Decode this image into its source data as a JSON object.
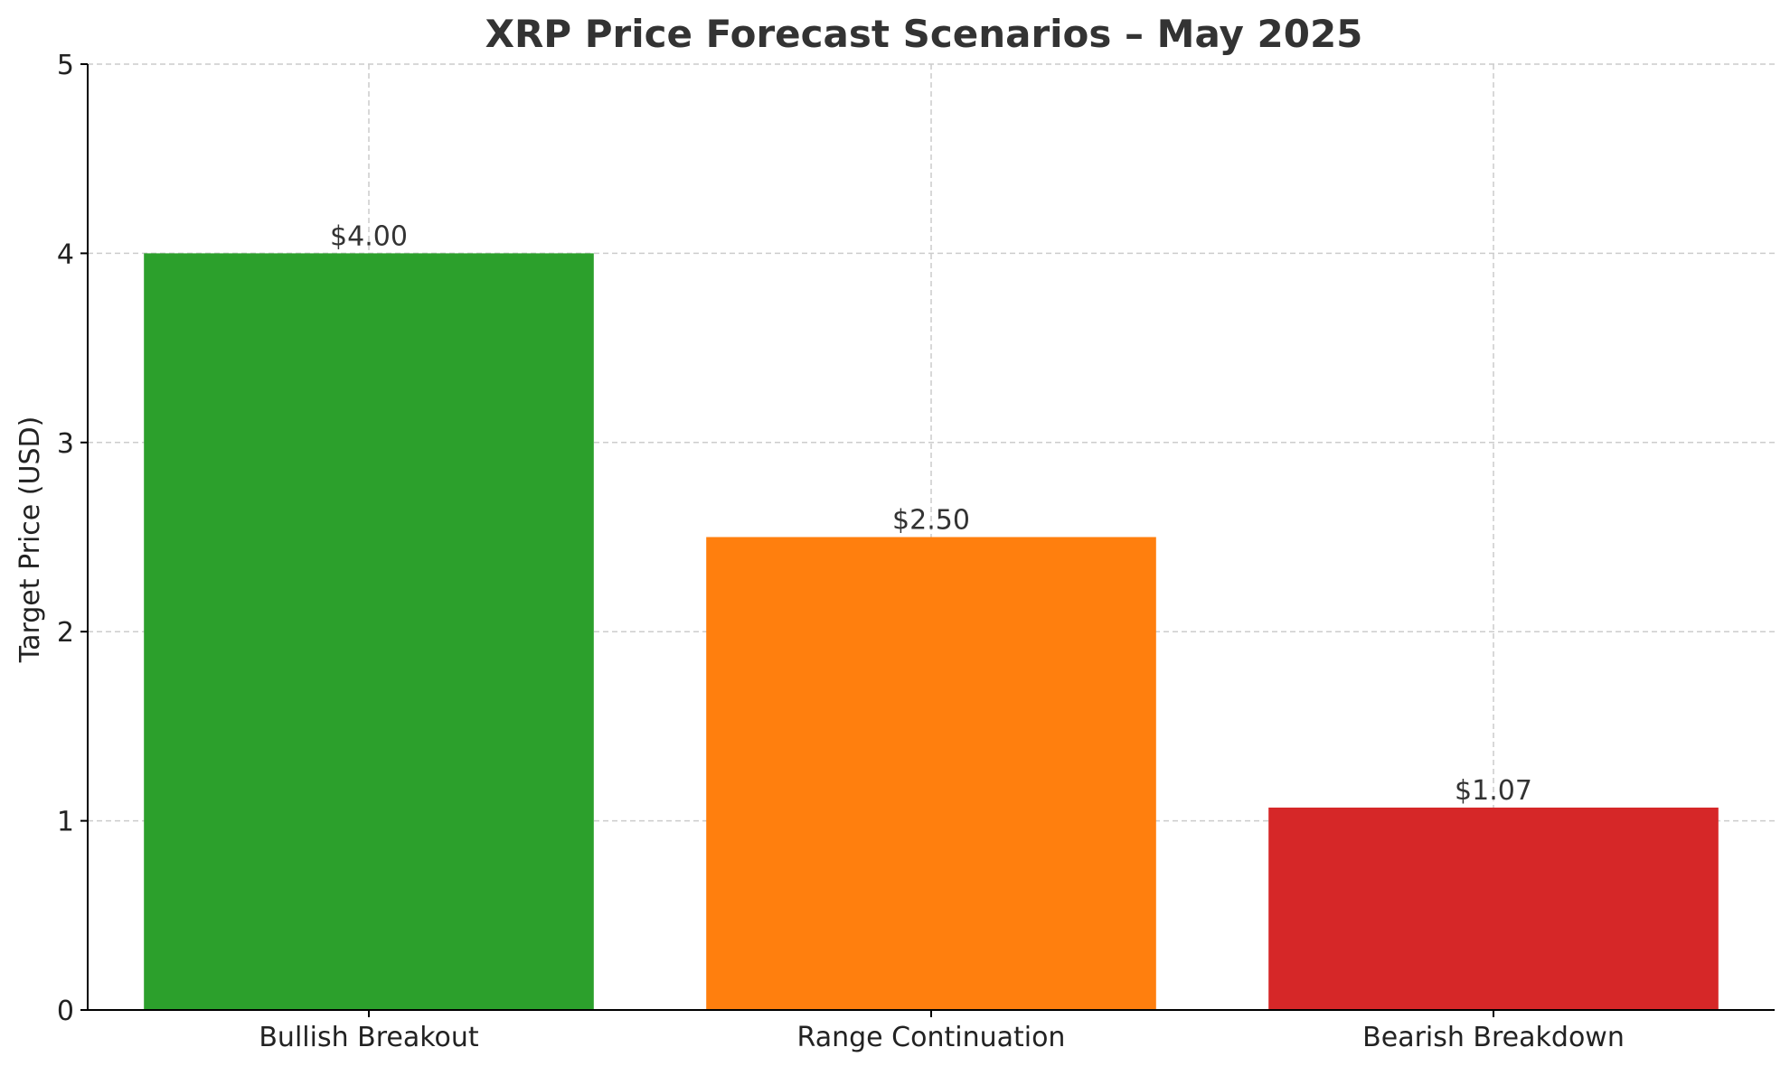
{
  "chart_data": {
    "type": "bar",
    "title": "XRP Price Forecast Scenarios – May 2025",
    "xlabel": "",
    "ylabel": "Target Price (USD)",
    "ylim": [
      0,
      5
    ],
    "yticks": [
      0,
      1,
      2,
      3,
      4,
      5
    ],
    "ytick_labels": [
      "0",
      "1",
      "2",
      "3",
      "4",
      "5"
    ],
    "grid": true,
    "categories": [
      "Bullish Breakout",
      "Range Continuation",
      "Bearish Breakdown"
    ],
    "values": [
      4.0,
      2.5,
      1.07
    ],
    "value_labels": [
      "$4.00",
      "$2.50",
      "$1.07"
    ],
    "colors": [
      "#2ca02c",
      "#ff7f0e",
      "#d62728"
    ]
  }
}
